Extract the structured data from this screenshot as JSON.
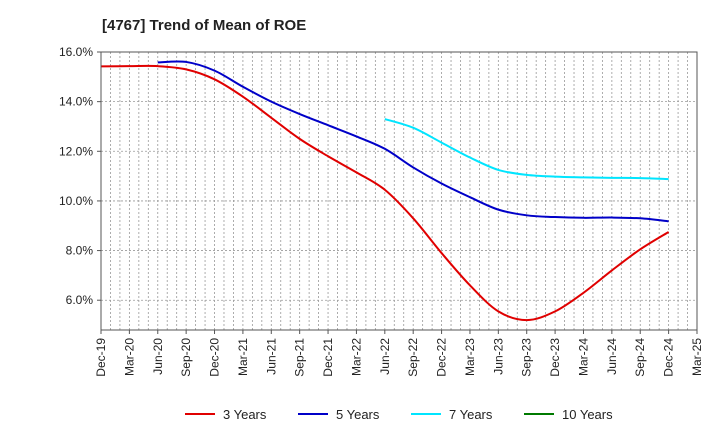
{
  "chart_data": {
    "type": "line",
    "title": "[4767]  Trend of Mean of ROE",
    "xlabel": "",
    "ylabel": "",
    "ylim": [
      4.8,
      16.0
    ],
    "y_ticks": [
      6.0,
      8.0,
      10.0,
      12.0,
      14.0,
      16.0
    ],
    "y_tick_labels": [
      "6.0%",
      "8.0%",
      "10.0%",
      "12.0%",
      "14.0%",
      "16.0%"
    ],
    "x_tick_labels": [
      "Dec-19",
      "Mar-20",
      "Jun-20",
      "Sep-20",
      "Dec-20",
      "Mar-21",
      "Jun-21",
      "Sep-21",
      "Dec-21",
      "Mar-22",
      "Jun-22",
      "Sep-22",
      "Dec-22",
      "Mar-23",
      "Jun-23",
      "Sep-23",
      "Dec-23",
      "Mar-24",
      "Jun-24",
      "Sep-24",
      "Dec-24",
      "Mar-25"
    ],
    "grid": true,
    "legend_position": "bottom",
    "series": [
      {
        "name": "3 Years",
        "color": "#e00000",
        "points": [
          [
            0,
            15.42
          ],
          [
            1,
            15.43
          ],
          [
            2,
            15.43
          ],
          [
            3,
            15.3
          ],
          [
            4,
            14.9
          ],
          [
            5,
            14.2
          ],
          [
            6,
            13.35
          ],
          [
            7,
            12.5
          ],
          [
            8,
            11.8
          ],
          [
            9,
            11.15
          ],
          [
            10,
            10.45
          ],
          [
            11,
            9.3
          ],
          [
            12,
            7.9
          ],
          [
            13,
            6.6
          ],
          [
            14,
            5.55
          ],
          [
            15,
            5.2
          ],
          [
            16,
            5.55
          ],
          [
            17,
            6.3
          ],
          [
            18,
            7.2
          ],
          [
            19,
            8.05
          ],
          [
            20,
            8.75
          ]
        ]
      },
      {
        "name": "5 Years",
        "color": "#0000c8",
        "points": [
          [
            2,
            15.58
          ],
          [
            3,
            15.6
          ],
          [
            4,
            15.25
          ],
          [
            5,
            14.6
          ],
          [
            6,
            14.0
          ],
          [
            7,
            13.5
          ],
          [
            8,
            13.05
          ],
          [
            9,
            12.6
          ],
          [
            10,
            12.1
          ],
          [
            11,
            11.35
          ],
          [
            12,
            10.7
          ],
          [
            13,
            10.15
          ],
          [
            14,
            9.65
          ],
          [
            15,
            9.42
          ],
          [
            16,
            9.35
          ],
          [
            17,
            9.32
          ],
          [
            18,
            9.33
          ],
          [
            19,
            9.3
          ],
          [
            20,
            9.18
          ]
        ]
      },
      {
        "name": "7 Years",
        "color": "#00e5ff",
        "points": [
          [
            10,
            13.3
          ],
          [
            11,
            12.95
          ],
          [
            12,
            12.35
          ],
          [
            13,
            11.75
          ],
          [
            14,
            11.25
          ],
          [
            15,
            11.05
          ],
          [
            16,
            10.98
          ],
          [
            17,
            10.95
          ],
          [
            18,
            10.93
          ],
          [
            19,
            10.92
          ],
          [
            20,
            10.88
          ]
        ]
      },
      {
        "name": "10 Years",
        "color": "#007a00",
        "points": []
      }
    ]
  }
}
